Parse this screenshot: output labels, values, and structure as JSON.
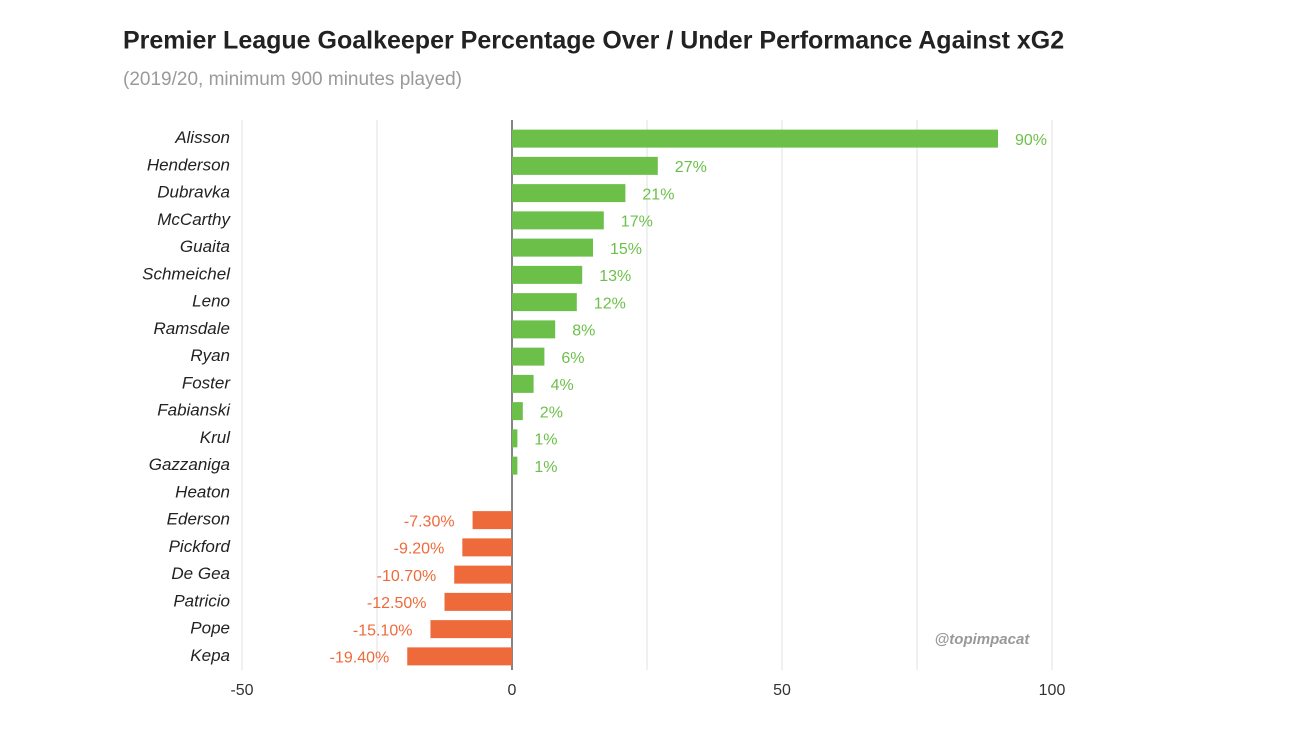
{
  "chart_data": {
    "type": "hbar",
    "title": "Premier League Goalkeeper Percentage Over / Under Performance Against xG2",
    "subtitle": "(2019/20, minimum 900 minutes played)",
    "categories": [
      "Alisson",
      "Henderson",
      "Dubravka",
      "McCarthy",
      "Guaita",
      "Schmeichel",
      "Leno",
      "Ramsdale",
      "Ryan",
      "Foster",
      "Fabianski",
      "Krul",
      "Gazzaniga",
      "Heaton",
      "Ederson",
      "Pickford",
      "De Gea",
      "Patricio",
      "Pope",
      "Kepa"
    ],
    "values": [
      90,
      27,
      21,
      17,
      15,
      13,
      12,
      8,
      6,
      4,
      2,
      1,
      1,
      null,
      -7.3,
      -9.2,
      -10.7,
      -12.5,
      -15.1,
      -19.4
    ],
    "value_labels": [
      "90%",
      "27%",
      "21%",
      "17%",
      "15%",
      "13%",
      "12%",
      "8%",
      "6%",
      "4%",
      "2%",
      "1%",
      "1%",
      null,
      "-7.30%",
      "-9.20%",
      "-10.70%",
      "-12.50%",
      "-15.10%",
      "-19.40%"
    ],
    "colors": {
      "positive": "#6cc04a",
      "negative": "#ee6a3b"
    },
    "xlim": [
      -50,
      100
    ],
    "xticks": [
      -50,
      0,
      50,
      100
    ],
    "xminor": [
      -25,
      25,
      75
    ],
    "grid": true,
    "watermark": "@topimpacat"
  }
}
